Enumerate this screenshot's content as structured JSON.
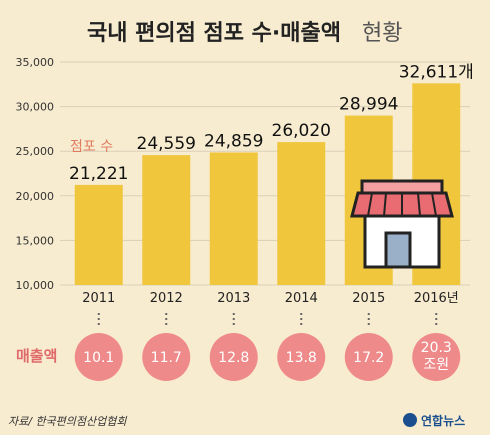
{
  "header": {
    "title_bold": "국내 편의점 점포 수·매출액",
    "title_light": "현황"
  },
  "store_label": "점포 수",
  "sales_label": "매출액",
  "source": "자료/ 한국편의점산업협회",
  "brand": "연합뉴스",
  "colors": {
    "bar": "#f0c63c",
    "sales_circle": "#ef8a8a",
    "background": "#f8ecd0"
  },
  "chart_data": {
    "type": "bar",
    "categories": [
      "2011",
      "2012",
      "2013",
      "2014",
      "2015",
      "2016년"
    ],
    "values": [
      21221,
      24559,
      24859,
      26020,
      28994,
      32611
    ],
    "value_labels": [
      "21,221",
      "24,559",
      "24,859",
      "26,020",
      "28,994",
      "32,611개"
    ],
    "y_ticks": [
      "35,000",
      "30,000",
      "25,000",
      "20,000",
      "15,000",
      "10,000"
    ],
    "ylim": [
      10000,
      35000
    ],
    "grid": true,
    "sales": [
      {
        "lines": [
          "10.1"
        ]
      },
      {
        "lines": [
          "11.7"
        ]
      },
      {
        "lines": [
          "12.8"
        ]
      },
      {
        "lines": [
          "13.8"
        ]
      },
      {
        "lines": [
          "17.2"
        ]
      },
      {
        "lines": [
          "20.3",
          "조원"
        ]
      }
    ]
  }
}
